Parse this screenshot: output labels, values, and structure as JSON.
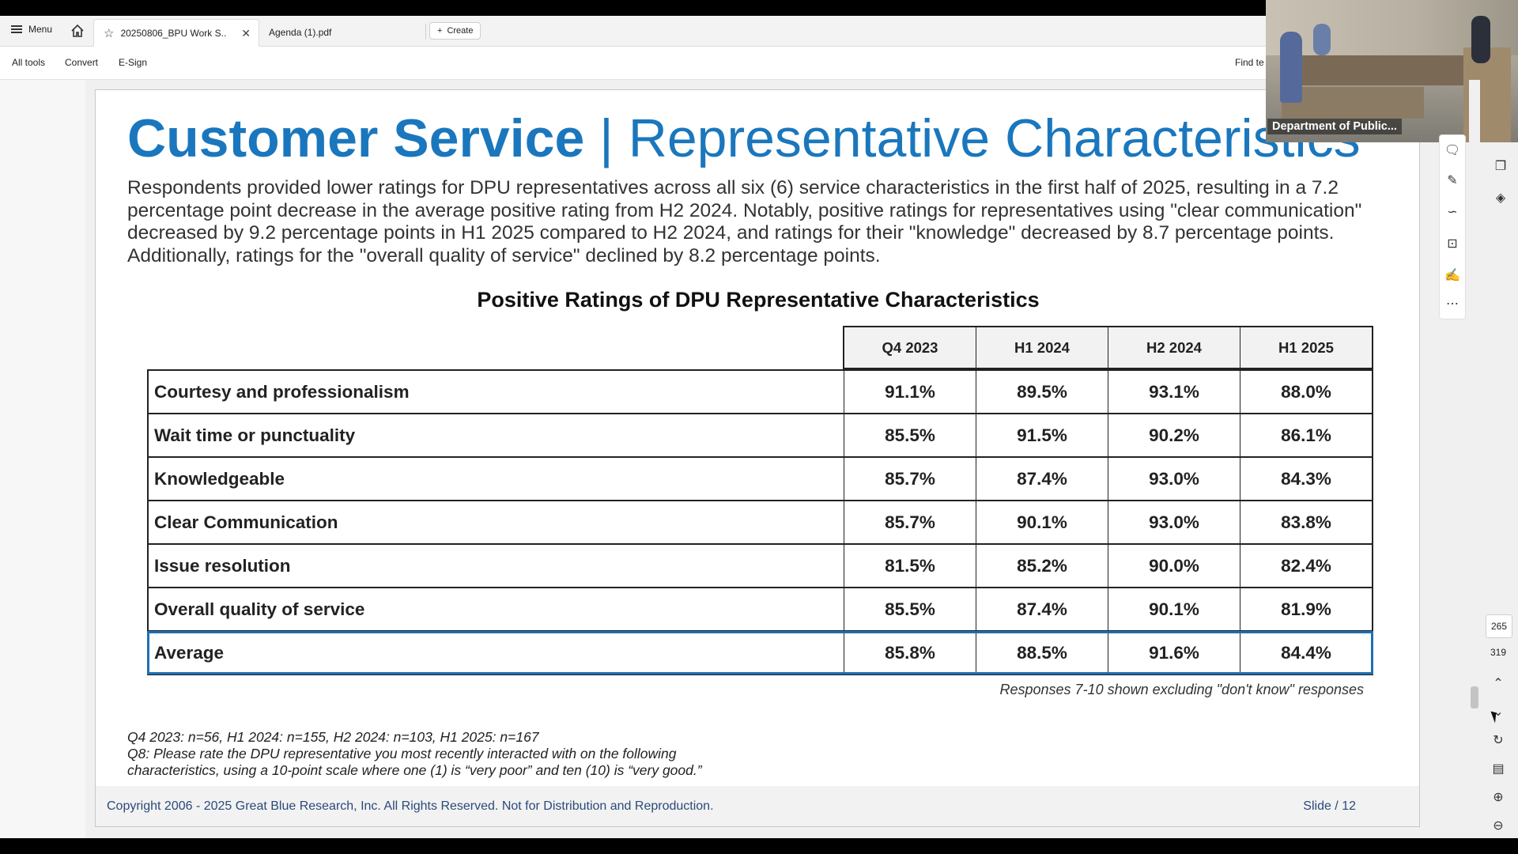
{
  "app": {
    "menu_label": "Menu",
    "tabs": [
      {
        "label": "20250806_BPU Work S..",
        "active": true
      },
      {
        "label": "Agenda (1).pdf",
        "active": false
      }
    ],
    "create_label": "Create",
    "toolbar": {
      "all_tools": "All tools",
      "convert": "Convert",
      "esign": "E-Sign",
      "find_text": "Find te"
    }
  },
  "webcam": {
    "caption": "Department of Public..."
  },
  "slide": {
    "title_bold": "Customer Service",
    "title_sep": " | ",
    "title_rest": "Representative Characteristics",
    "description": "Respondents provided lower ratings for DPU representatives across all six (6) service characteristics in the first half of 2025, resulting in a 7.2 percentage point decrease in the average positive rating from H2 2024. Notably, positive ratings for representatives using \"clear communication\" decreased by 9.2 percentage points in H1 2025 compared to H2 2024, and ratings for their \"knowledge\" decreased by 8.7 percentage points. Additionally, ratings for the \"overall quality of service\" declined by 8.2 percentage points.",
    "chart_title": "Positive Ratings of DPU Representative Characteristics",
    "table": {
      "columns": [
        "Q4 2023",
        "H1 2024",
        "H2 2024",
        "H1 2025"
      ],
      "rows": [
        {
          "label": "Courtesy and professionalism",
          "values": [
            "91.1%",
            "89.5%",
            "93.1%",
            "88.0%"
          ]
        },
        {
          "label": "Wait time or punctuality",
          "values": [
            "85.5%",
            "91.5%",
            "90.2%",
            "86.1%"
          ]
        },
        {
          "label": "Knowledgeable",
          "values": [
            "85.7%",
            "87.4%",
            "93.0%",
            "84.3%"
          ]
        },
        {
          "label": "Clear Communication",
          "values": [
            "85.7%",
            "90.1%",
            "93.0%",
            "83.8%"
          ]
        },
        {
          "label": "Issue resolution",
          "values": [
            "81.5%",
            "85.2%",
            "90.0%",
            "82.4%"
          ]
        },
        {
          "label": "Overall quality of service",
          "values": [
            "85.5%",
            "87.4%",
            "90.1%",
            "81.9%"
          ]
        },
        {
          "label": "Average",
          "values": [
            "85.8%",
            "88.5%",
            "91.6%",
            "84.4%"
          ]
        }
      ]
    },
    "note": "Responses 7-10 shown excluding \"don't know\" responses",
    "footnotes": [
      "Q4 2023: n=56, H1 2024: n=155, H2 2024: n=103, H1 2025: n=167",
      "Q8: Please rate the DPU representative you most recently interacted with on the following",
      "characteristics, using a 10-point scale where one (1) is “very poor” and ten (10) is “very good.”"
    ],
    "copyright": "Copyright 2006 - 2025 Great Blue Research, Inc. All Rights Reserved. Not for Distribution and Reproduction.",
    "slide_number": "Slide / 12"
  },
  "navigation": {
    "current_page": "265",
    "total_pages": "319"
  },
  "colors": {
    "title_blue": "#1a77bd",
    "highlight_blue": "#1e6fb5"
  }
}
